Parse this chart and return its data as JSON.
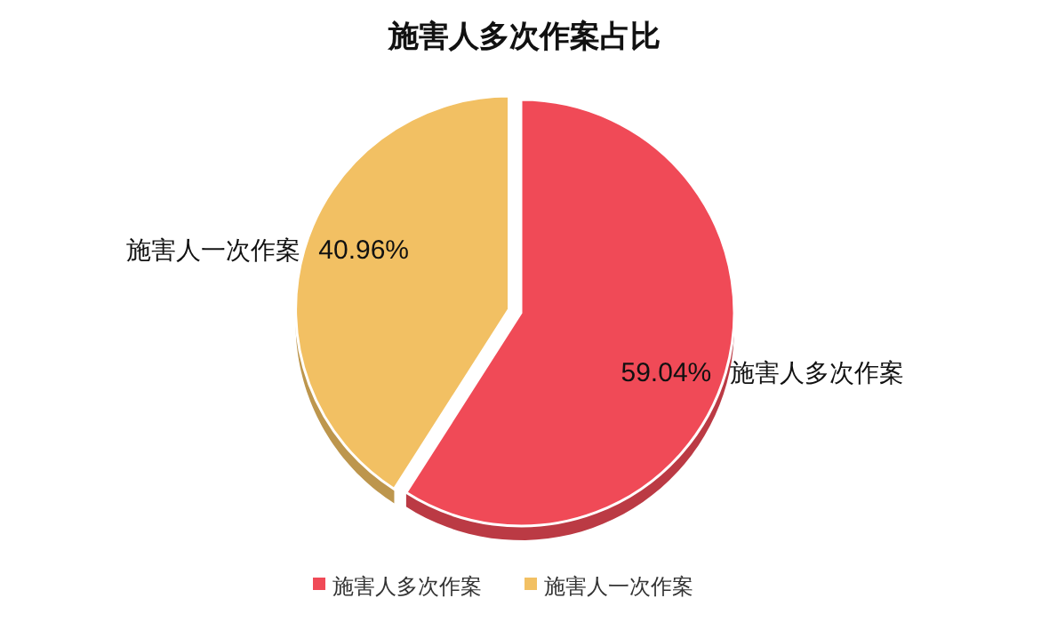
{
  "chart_data": {
    "type": "pie",
    "title": "施害人多次作案占比",
    "categories": [
      "施害人多次作案",
      "施害人一次作案"
    ],
    "values": [
      59.04,
      40.96
    ],
    "colors": [
      "#f04a57",
      "#f2c063"
    ],
    "value_labels": [
      "59.04%",
      "40.96%"
    ],
    "legend": "bottom"
  }
}
